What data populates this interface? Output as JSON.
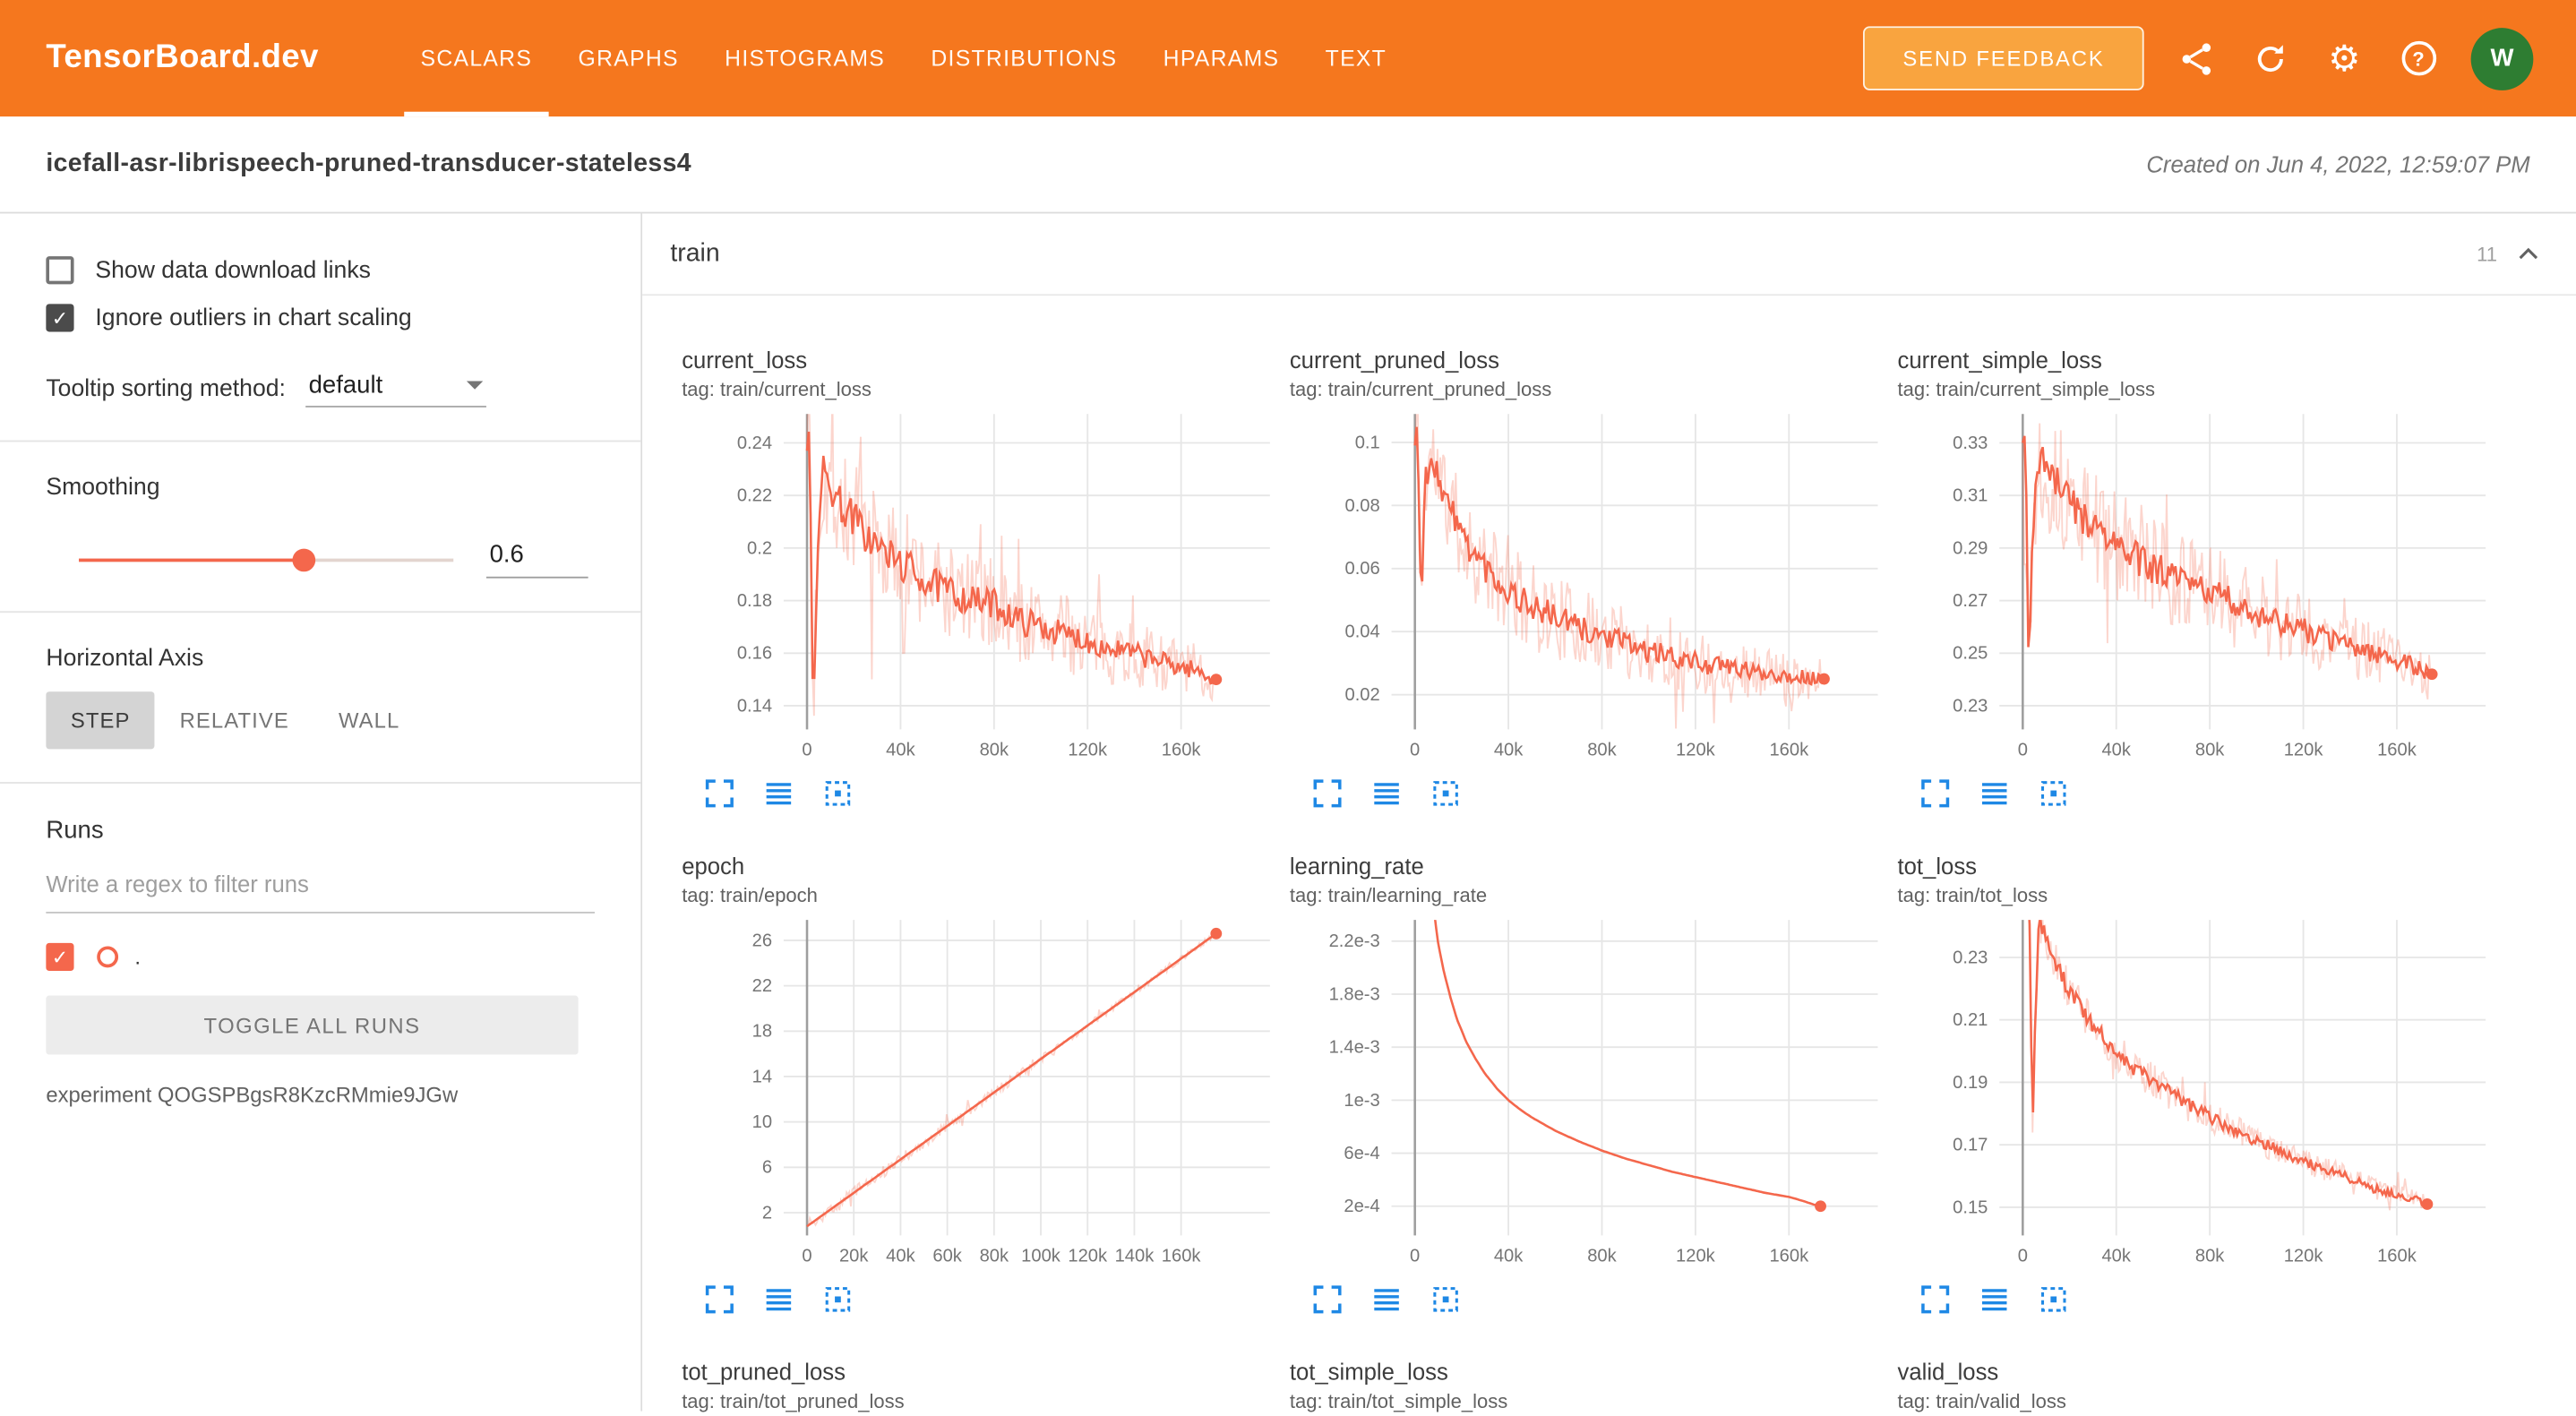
{
  "colors": {
    "header_bg": "#f5771e",
    "feedback_bg": "#f9a43f",
    "accent": "#f4674c",
    "icon_blue": "#1e88e5",
    "avatar_bg": "#2e7d32"
  },
  "header": {
    "brand": "TensorBoard.dev",
    "tabs": [
      {
        "label": "SCALARS",
        "active": true
      },
      {
        "label": "GRAPHS",
        "active": false
      },
      {
        "label": "HISTOGRAMS",
        "active": false
      },
      {
        "label": "DISTRIBUTIONS",
        "active": false
      },
      {
        "label": "HPARAMS",
        "active": false
      },
      {
        "label": "TEXT",
        "active": false
      }
    ],
    "feedback_button": "SEND FEEDBACK",
    "icon_names": [
      "share-icon",
      "refresh-icon",
      "settings-icon",
      "help-icon"
    ],
    "avatar": "W"
  },
  "subheader": {
    "title": "icefall-asr-librispeech-pruned-transducer-stateless4",
    "created": "Created on Jun 4, 2022, 12:59:07 PM"
  },
  "sidebar": {
    "show_download": {
      "label": "Show data download links",
      "checked": false
    },
    "ignore_outliers": {
      "label": "Ignore outliers in chart scaling",
      "checked": true
    },
    "tooltip_sorting": {
      "label": "Tooltip sorting method:",
      "value": "default"
    },
    "smoothing": {
      "label": "Smoothing",
      "value": "0.6",
      "percent": 60
    },
    "horizontal_axis": {
      "label": "Horizontal Axis",
      "options": [
        {
          "label": "STEP",
          "active": true
        },
        {
          "label": "RELATIVE",
          "active": false
        },
        {
          "label": "WALL",
          "active": false
        }
      ]
    },
    "runs": {
      "label": "Runs",
      "filter_placeholder": "Write a regex to filter runs",
      "run_name": ".",
      "run_checked": true,
      "toggle_button": "TOGGLE ALL RUNS",
      "experiment": "experiment QOGSPBgsR8KzcRMmie9JGw"
    }
  },
  "main": {
    "section": {
      "name": "train",
      "count": "11"
    }
  },
  "chart_data": [
    {
      "type": "line",
      "title": "current_loss",
      "tag": "tag: train/current_loss",
      "color": "#f4674c",
      "seed": 7,
      "xlim": [
        -10000,
        198000
      ],
      "ylim": [
        0.131,
        0.251
      ],
      "yticks": [
        {
          "v": 0.14,
          "label": "0.14"
        },
        {
          "v": 0.16,
          "label": "0.16"
        },
        {
          "v": 0.18,
          "label": "0.18"
        },
        {
          "v": 0.2,
          "label": "0.2"
        },
        {
          "v": 0.22,
          "label": "0.22"
        },
        {
          "v": 0.24,
          "label": "0.24"
        }
      ],
      "xticks": [
        {
          "v": 0,
          "label": "0"
        },
        {
          "v": 40000,
          "label": "40k"
        },
        {
          "v": 80000,
          "label": "80k"
        },
        {
          "v": 120000,
          "label": "120k"
        },
        {
          "v": 160000,
          "label": "160k"
        }
      ],
      "noise_raw": 0.019,
      "noise_smooth": 0.0062,
      "end_dot": true,
      "points": [
        [
          0,
          0.237
        ],
        [
          1200,
          0.246
        ],
        [
          2600,
          0.132
        ],
        [
          4500,
          0.205
        ],
        [
          7000,
          0.228
        ],
        [
          11000,
          0.222
        ],
        [
          15000,
          0.216
        ],
        [
          20000,
          0.211
        ],
        [
          26000,
          0.204
        ],
        [
          32000,
          0.199
        ],
        [
          38000,
          0.195
        ],
        [
          44000,
          0.192
        ],
        [
          50000,
          0.188
        ],
        [
          56000,
          0.185
        ],
        [
          62000,
          0.183
        ],
        [
          68000,
          0.181
        ],
        [
          74000,
          0.179
        ],
        [
          80000,
          0.179
        ],
        [
          86000,
          0.175
        ],
        [
          92000,
          0.172
        ],
        [
          98000,
          0.171
        ],
        [
          104000,
          0.169
        ],
        [
          110000,
          0.167
        ],
        [
          116000,
          0.166
        ],
        [
          122000,
          0.164
        ],
        [
          128000,
          0.162
        ],
        [
          134000,
          0.161
        ],
        [
          140000,
          0.16
        ],
        [
          146000,
          0.158
        ],
        [
          152000,
          0.157
        ],
        [
          158000,
          0.155
        ],
        [
          164000,
          0.154
        ],
        [
          170000,
          0.152
        ],
        [
          175000,
          0.15
        ]
      ]
    },
    {
      "type": "line",
      "title": "current_pruned_loss",
      "tag": "tag: train/current_pruned_loss",
      "color": "#f4674c",
      "seed": 11,
      "xlim": [
        -10000,
        198000
      ],
      "ylim": [
        0.009,
        0.109
      ],
      "yticks": [
        {
          "v": 0.02,
          "label": "0.02"
        },
        {
          "v": 0.04,
          "label": "0.04"
        },
        {
          "v": 0.06,
          "label": "0.06"
        },
        {
          "v": 0.08,
          "label": "0.08"
        },
        {
          "v": 0.1,
          "label": "0.1"
        }
      ],
      "xticks": [
        {
          "v": 0,
          "label": "0"
        },
        {
          "v": 40000,
          "label": "40k"
        },
        {
          "v": 80000,
          "label": "80k"
        },
        {
          "v": 120000,
          "label": "120k"
        },
        {
          "v": 160000,
          "label": "160k"
        }
      ],
      "noise_raw": 0.013,
      "noise_smooth": 0.0042,
      "end_dot": true,
      "points": [
        [
          0,
          0.099
        ],
        [
          1200,
          0.107
        ],
        [
          2600,
          0.046
        ],
        [
          4500,
          0.088
        ],
        [
          7000,
          0.096
        ],
        [
          11000,
          0.087
        ],
        [
          15000,
          0.079
        ],
        [
          20000,
          0.071
        ],
        [
          26000,
          0.064
        ],
        [
          32000,
          0.059
        ],
        [
          38000,
          0.054
        ],
        [
          44000,
          0.051
        ],
        [
          50000,
          0.048
        ],
        [
          56000,
          0.046
        ],
        [
          62000,
          0.044
        ],
        [
          68000,
          0.042
        ],
        [
          74000,
          0.04
        ],
        [
          80000,
          0.039
        ],
        [
          86000,
          0.037
        ],
        [
          92000,
          0.036
        ],
        [
          98000,
          0.034
        ],
        [
          104000,
          0.033
        ],
        [
          110000,
          0.032
        ],
        [
          116000,
          0.031
        ],
        [
          122000,
          0.03
        ],
        [
          128000,
          0.029
        ],
        [
          134000,
          0.029
        ],
        [
          140000,
          0.028
        ],
        [
          146000,
          0.027
        ],
        [
          152000,
          0.027
        ],
        [
          158000,
          0.026
        ],
        [
          164000,
          0.026
        ],
        [
          170000,
          0.025
        ],
        [
          175000,
          0.025
        ]
      ]
    },
    {
      "type": "line",
      "title": "current_simple_loss",
      "tag": "tag: train/current_simple_loss",
      "color": "#f4674c",
      "seed": 13,
      "xlim": [
        -10000,
        198000
      ],
      "ylim": [
        0.221,
        0.341
      ],
      "yticks": [
        {
          "v": 0.23,
          "label": "0.23"
        },
        {
          "v": 0.25,
          "label": "0.25"
        },
        {
          "v": 0.27,
          "label": "0.27"
        },
        {
          "v": 0.29,
          "label": "0.29"
        },
        {
          "v": 0.31,
          "label": "0.31"
        },
        {
          "v": 0.33,
          "label": "0.33"
        }
      ],
      "xticks": [
        {
          "v": 0,
          "label": "0"
        },
        {
          "v": 40000,
          "label": "40k"
        },
        {
          "v": 80000,
          "label": "80k"
        },
        {
          "v": 120000,
          "label": "120k"
        },
        {
          "v": 160000,
          "label": "160k"
        }
      ],
      "noise_raw": 0.019,
      "noise_smooth": 0.0062,
      "end_dot": true,
      "points": [
        [
          0,
          0.33
        ],
        [
          1200,
          0.339
        ],
        [
          2600,
          0.24
        ],
        [
          4500,
          0.3
        ],
        [
          7000,
          0.326
        ],
        [
          11000,
          0.319
        ],
        [
          15000,
          0.313
        ],
        [
          20000,
          0.308
        ],
        [
          26000,
          0.302
        ],
        [
          32000,
          0.297
        ],
        [
          38000,
          0.292
        ],
        [
          44000,
          0.289
        ],
        [
          50000,
          0.285
        ],
        [
          56000,
          0.282
        ],
        [
          62000,
          0.28
        ],
        [
          68000,
          0.277
        ],
        [
          74000,
          0.275
        ],
        [
          80000,
          0.274
        ],
        [
          86000,
          0.271
        ],
        [
          92000,
          0.268
        ],
        [
          98000,
          0.266
        ],
        [
          104000,
          0.264
        ],
        [
          110000,
          0.262
        ],
        [
          116000,
          0.26
        ],
        [
          122000,
          0.258
        ],
        [
          128000,
          0.256
        ],
        [
          134000,
          0.255
        ],
        [
          140000,
          0.253
        ],
        [
          146000,
          0.251
        ],
        [
          152000,
          0.25
        ],
        [
          158000,
          0.248
        ],
        [
          164000,
          0.246
        ],
        [
          170000,
          0.244
        ],
        [
          175000,
          0.242
        ]
      ]
    },
    {
      "type": "line",
      "title": "epoch",
      "tag": "tag: train/epoch",
      "color": "#f4674c",
      "seed": 1,
      "xlim": [
        -10000,
        198000
      ],
      "ylim": [
        0,
        27.8
      ],
      "yticks": [
        {
          "v": 2,
          "label": "2"
        },
        {
          "v": 6,
          "label": "6"
        },
        {
          "v": 10,
          "label": "10"
        },
        {
          "v": 14,
          "label": "14"
        },
        {
          "v": 18,
          "label": "18"
        },
        {
          "v": 22,
          "label": "22"
        },
        {
          "v": 26,
          "label": "26"
        }
      ],
      "xticks": [
        {
          "v": 0,
          "label": "0"
        },
        {
          "v": 20000,
          "label": "20k"
        },
        {
          "v": 40000,
          "label": "40k"
        },
        {
          "v": 60000,
          "label": "60k"
        },
        {
          "v": 80000,
          "label": "80k"
        },
        {
          "v": 100000,
          "label": "100k"
        },
        {
          "v": 120000,
          "label": "120k"
        },
        {
          "v": 140000,
          "label": "140k"
        },
        {
          "v": 160000,
          "label": "160k"
        }
      ],
      "noise_raw": 0.45,
      "noise_smooth": 0,
      "end_dot": true,
      "points": [
        [
          0,
          0.8
        ],
        [
          175000,
          26.6
        ]
      ]
    },
    {
      "type": "line",
      "title": "learning_rate",
      "tag": "tag: train/learning_rate",
      "color": "#f4674c",
      "seed": 2,
      "xlim": [
        -10000,
        198000
      ],
      "ylim": [
        -2e-05,
        0.00236
      ],
      "yticks": [
        {
          "v": 0.0002,
          "label": "2e-4"
        },
        {
          "v": 0.0006,
          "label": "6e-4"
        },
        {
          "v": 0.001,
          "label": "1e-3"
        },
        {
          "v": 0.0014,
          "label": "1.4e-3"
        },
        {
          "v": 0.0018,
          "label": "1.8e-3"
        },
        {
          "v": 0.0022,
          "label": "2.2e-3"
        }
      ],
      "xticks": [
        {
          "v": 0,
          "label": "0"
        },
        {
          "v": 40000,
          "label": "40k"
        },
        {
          "v": 80000,
          "label": "80k"
        },
        {
          "v": 120000,
          "label": "120k"
        },
        {
          "v": 160000,
          "label": "160k"
        }
      ],
      "noise_raw": 0,
      "noise_smooth": 0,
      "end_dot": true,
      "points": [
        [
          1500,
          0.006
        ],
        [
          4000,
          0.0038
        ],
        [
          6000,
          0.0029
        ],
        [
          8000,
          0.00245
        ],
        [
          10000,
          0.00218
        ],
        [
          12500,
          0.00196
        ],
        [
          15000,
          0.00179
        ],
        [
          18000,
          0.00161
        ],
        [
          22000,
          0.00144
        ],
        [
          26000,
          0.00131
        ],
        [
          30000,
          0.0012
        ],
        [
          35000,
          0.00109
        ],
        [
          40000,
          0.001
        ],
        [
          45000,
          0.00093
        ],
        [
          50000,
          0.00087
        ],
        [
          60000,
          0.00077
        ],
        [
          70000,
          0.00069
        ],
        [
          80000,
          0.00062
        ],
        [
          90000,
          0.00056
        ],
        [
          100000,
          0.00051
        ],
        [
          110000,
          0.00046
        ],
        [
          120000,
          0.00042
        ],
        [
          130000,
          0.00038
        ],
        [
          140000,
          0.00034
        ],
        [
          150000,
          0.0003
        ],
        [
          160000,
          0.00027
        ],
        [
          166000,
          0.00024
        ],
        [
          171000,
          0.00021
        ],
        [
          173500,
          0.0002
        ]
      ]
    },
    {
      "type": "line",
      "title": "tot_loss",
      "tag": "tag: train/tot_loss",
      "color": "#f4674c",
      "seed": 17,
      "xlim": [
        -10000,
        198000
      ],
      "ylim": [
        0.141,
        0.242
      ],
      "yticks": [
        {
          "v": 0.15,
          "label": "0.15"
        },
        {
          "v": 0.17,
          "label": "0.17"
        },
        {
          "v": 0.19,
          "label": "0.19"
        },
        {
          "v": 0.21,
          "label": "0.21"
        },
        {
          "v": 0.23,
          "label": "0.23"
        }
      ],
      "xticks": [
        {
          "v": 0,
          "label": "0"
        },
        {
          "v": 40000,
          "label": "40k"
        },
        {
          "v": 80000,
          "label": "80k"
        },
        {
          "v": 120000,
          "label": "120k"
        },
        {
          "v": 160000,
          "label": "160k"
        }
      ],
      "noise_raw": 0.0055,
      "noise_smooth": 0.0022,
      "end_dot": true,
      "points": [
        [
          600,
          0.33
        ],
        [
          1500,
          0.26
        ],
        [
          2800,
          0.247
        ],
        [
          4200,
          0.176
        ],
        [
          5500,
          0.215
        ],
        [
          7000,
          0.242
        ],
        [
          9000,
          0.238
        ],
        [
          12000,
          0.232
        ],
        [
          15000,
          0.227
        ],
        [
          18000,
          0.222
        ],
        [
          22000,
          0.217
        ],
        [
          26000,
          0.213
        ],
        [
          30000,
          0.208
        ],
        [
          35000,
          0.204
        ],
        [
          40000,
          0.2
        ],
        [
          45000,
          0.196
        ],
        [
          50000,
          0.193
        ],
        [
          55000,
          0.191
        ],
        [
          60000,
          0.188
        ],
        [
          65000,
          0.186
        ],
        [
          70000,
          0.183
        ],
        [
          75000,
          0.181
        ],
        [
          80000,
          0.179
        ],
        [
          85000,
          0.177
        ],
        [
          90000,
          0.175
        ],
        [
          95000,
          0.173
        ],
        [
          100000,
          0.171
        ],
        [
          105000,
          0.17
        ],
        [
          110000,
          0.168
        ],
        [
          115000,
          0.166
        ],
        [
          120000,
          0.165
        ],
        [
          125000,
          0.163
        ],
        [
          130000,
          0.162
        ],
        [
          135000,
          0.161
        ],
        [
          140000,
          0.159
        ],
        [
          145000,
          0.158
        ],
        [
          150000,
          0.156
        ],
        [
          155000,
          0.155
        ],
        [
          160000,
          0.154
        ],
        [
          165000,
          0.153
        ],
        [
          170000,
          0.152
        ],
        [
          173000,
          0.151
        ]
      ]
    },
    {
      "type": "line",
      "title": "tot_pruned_loss",
      "tag": "tag: train/tot_pruned_loss"
    },
    {
      "type": "line",
      "title": "tot_simple_loss",
      "tag": "tag: train/tot_simple_loss"
    },
    {
      "type": "line",
      "title": "valid_loss",
      "tag": "tag: train/valid_loss"
    }
  ]
}
